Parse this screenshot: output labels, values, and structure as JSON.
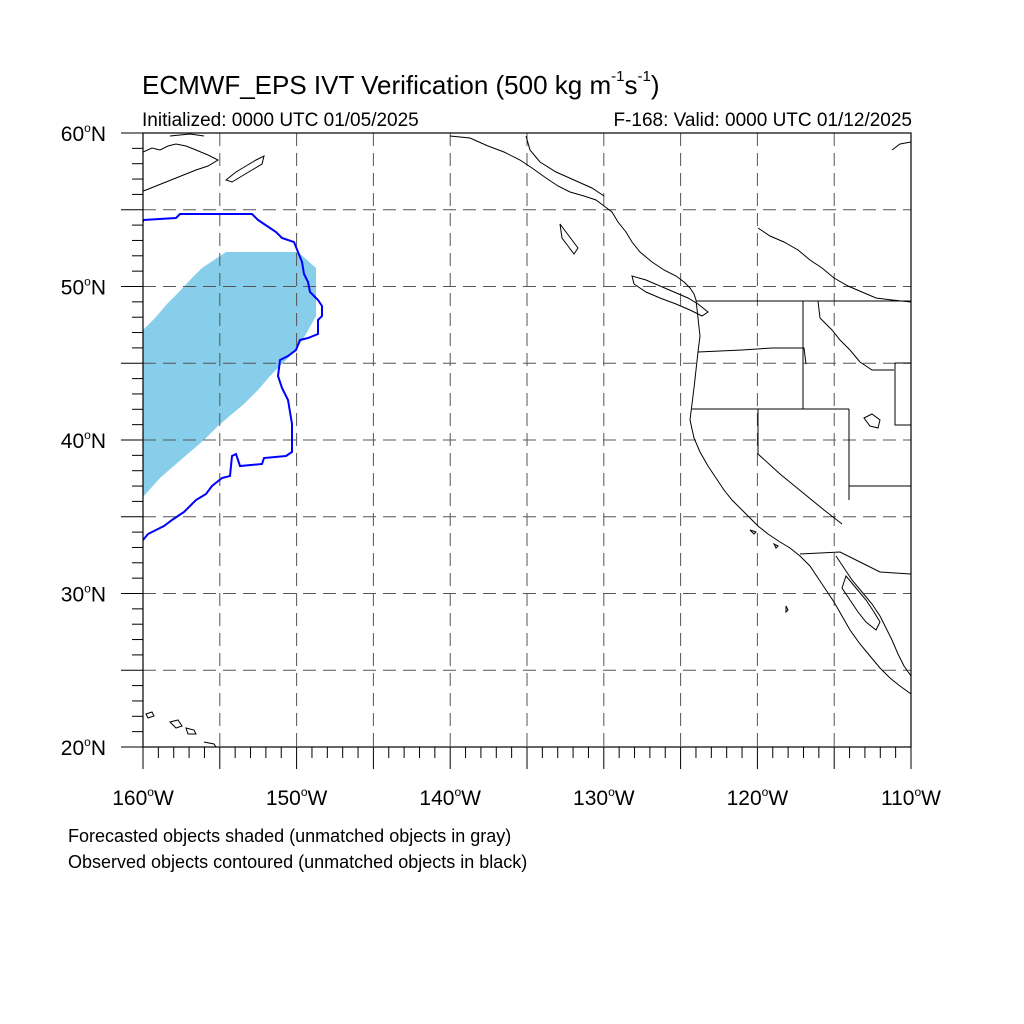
{
  "title": {
    "main": "ECMWF_EPS IVT Verification (500 kg m",
    "exp1": "-1",
    "mid": "s",
    "exp2": "-1",
    "end": ")"
  },
  "initialized_text": "Initialized: 0000 UTC 01/05/2025",
  "valid_text": "F-168: Valid: 0000 UTC 01/12/2025",
  "legend_notes": [
    "Forecasted objects shaded (unmatched objects in gray)",
    "Observed objects contoured (unmatched objects in black)"
  ],
  "map": {
    "lon_range": [
      -160,
      -110
    ],
    "lat_range": [
      20,
      60
    ],
    "lon_ticks": [
      {
        "value": -160,
        "label": "160",
        "hemi": "W"
      },
      {
        "value": -150,
        "label": "150",
        "hemi": "W"
      },
      {
        "value": -140,
        "label": "140",
        "hemi": "W"
      },
      {
        "value": -130,
        "label": "130",
        "hemi": "W"
      },
      {
        "value": -120,
        "label": "120",
        "hemi": "W"
      },
      {
        "value": -110,
        "label": "110",
        "hemi": "W"
      }
    ],
    "lat_ticks": [
      {
        "value": 20,
        "label": "20",
        "hemi": "N"
      },
      {
        "value": 30,
        "label": "30",
        "hemi": "N"
      },
      {
        "value": 40,
        "label": "40",
        "hemi": "N"
      },
      {
        "value": 50,
        "label": "50",
        "hemi": "N"
      },
      {
        "value": 60,
        "label": "60",
        "hemi": "N"
      }
    ],
    "gridlines_dashed": true,
    "colors": {
      "forecast_fill": "#87ceeb",
      "observed_contour": "#0000ff",
      "coastline": "#000000"
    }
  }
}
